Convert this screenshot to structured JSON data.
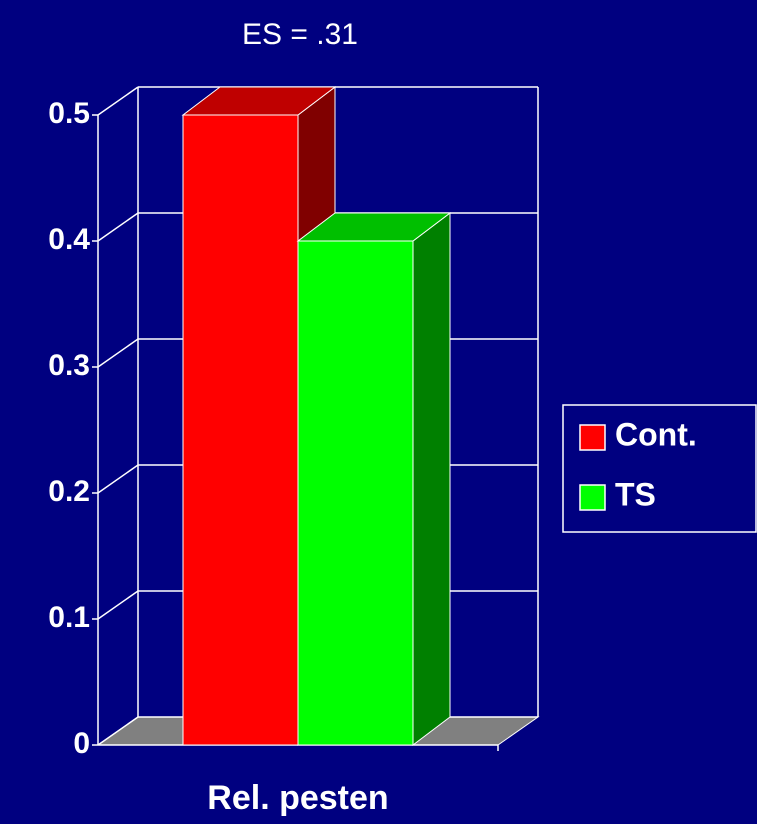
{
  "chart_data": {
    "type": "bar3d",
    "title": "ES = .31",
    "categories": [
      "Rel. pesten"
    ],
    "series": [
      {
        "name": "Cont.",
        "color": "#ff0000",
        "values": [
          0.5
        ]
      },
      {
        "name": "TS",
        "color": "#00ff00",
        "values": [
          0.4
        ]
      }
    ],
    "ylim": [
      0,
      0.5
    ],
    "yticks": [
      0,
      0.1,
      0.2,
      0.3,
      0.4,
      0.5
    ],
    "grid": true,
    "legend": "right"
  }
}
